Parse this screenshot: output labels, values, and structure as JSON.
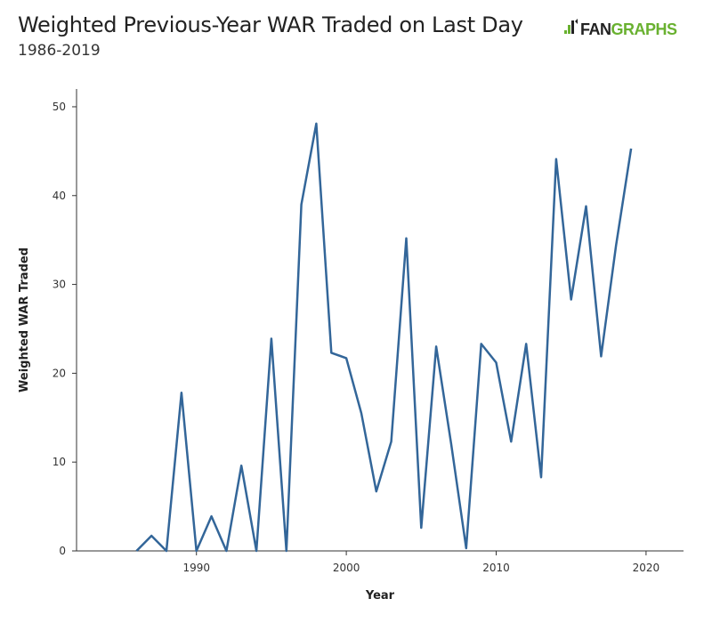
{
  "header": {
    "title": "Weighted Previous-Year WAR Traded on Last Day",
    "subtitle": "1986-2019",
    "logo_text_dark": "FAN",
    "logo_text_green": "GRAPHS",
    "logo_icon": "fangraphs-player-icon",
    "brand_green": "#69b130"
  },
  "chart_data": {
    "type": "line",
    "title": "Weighted Previous-Year WAR Traded on Last Day",
    "subtitle": "1986-2019",
    "xlabel": "Year",
    "ylabel": "Weighted WAR Traded",
    "xlim": [
      1982,
      2022.5
    ],
    "ylim": [
      0,
      52
    ],
    "xticks": [
      1990,
      2000,
      2010,
      2020
    ],
    "yticks": [
      0,
      10,
      20,
      30,
      40,
      50
    ],
    "grid": false,
    "line_color": "#336699",
    "x": [
      1986,
      1987,
      1988,
      1989,
      1990,
      1991,
      1992,
      1993,
      1994,
      1995,
      1996,
      1997,
      1998,
      1999,
      2000,
      2001,
      2002,
      2003,
      2004,
      2005,
      2006,
      2007,
      2008,
      2009,
      2010,
      2011,
      2012,
      2013,
      2014,
      2015,
      2016,
      2017,
      2018,
      2019
    ],
    "y": [
      0,
      1.7,
      0,
      17.8,
      0,
      3.9,
      0,
      9.6,
      0,
      23.9,
      0,
      39.0,
      48.1,
      22.3,
      21.7,
      15.5,
      6.7,
      12.3,
      35.2,
      2.6,
      23.0,
      12.0,
      0.3,
      23.3,
      21.2,
      12.3,
      23.3,
      8.3,
      44.1,
      28.3,
      38.8,
      21.9,
      34.4,
      45.3
    ]
  }
}
